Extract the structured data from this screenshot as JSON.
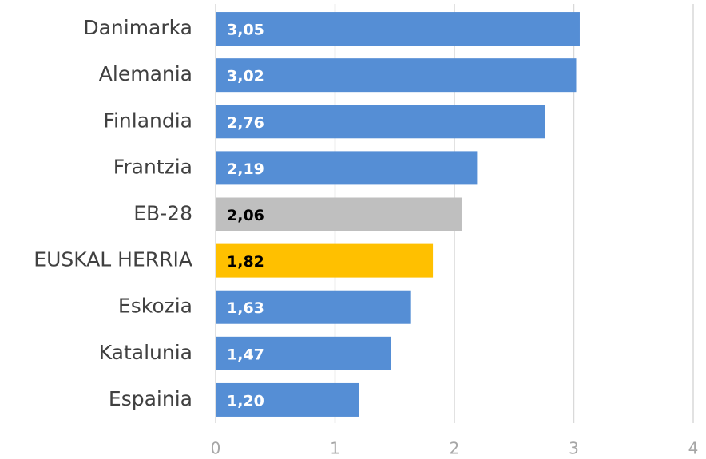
{
  "chart_data": {
    "type": "bar",
    "orientation": "horizontal",
    "categories": [
      "Danimarka",
      "Alemania",
      "Finlandia",
      "Frantzia",
      "EB-28",
      "EUSKAL HERRIA",
      "Eskozia",
      "Katalunia",
      "Espainia"
    ],
    "values": [
      3.05,
      3.02,
      2.76,
      2.19,
      2.06,
      1.82,
      1.63,
      1.47,
      1.2
    ],
    "value_labels": [
      "3,05",
      "3,02",
      "2,76",
      "2,19",
      "2,06",
      "1,82",
      "1,63",
      "1,47",
      "1,20"
    ],
    "colors": [
      "#558ed5",
      "#558ed5",
      "#558ed5",
      "#558ed5",
      "#bfbfbf",
      "#ffc000",
      "#558ed5",
      "#558ed5",
      "#558ed5"
    ],
    "value_label_colors": [
      "#ffffff",
      "#ffffff",
      "#ffffff",
      "#ffffff",
      "#000000",
      "#000000",
      "#ffffff",
      "#ffffff",
      "#ffffff"
    ],
    "xlim": [
      0,
      4
    ],
    "xticks": [
      0,
      1,
      2,
      3,
      4
    ],
    "grid": true
  }
}
